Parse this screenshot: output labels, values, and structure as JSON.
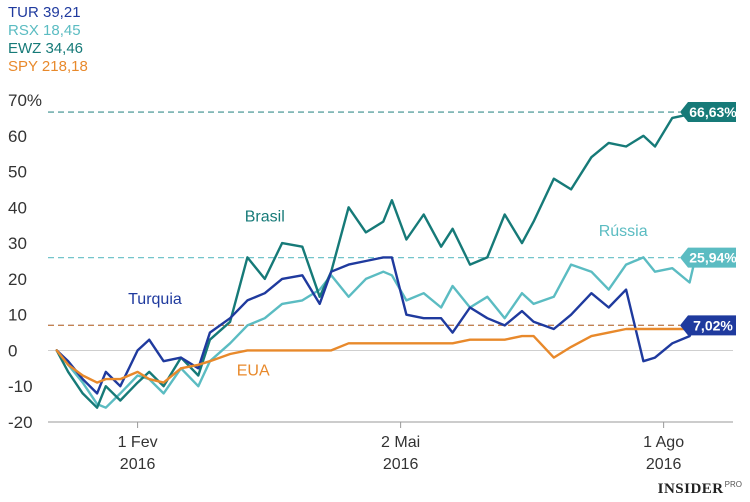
{
  "legend": [
    {
      "label": "TUR 39,21",
      "color": "#1f3a9e"
    },
    {
      "label": "RSX 18,45",
      "color": "#5bbcc2"
    },
    {
      "label": "EWZ 34,46",
      "color": "#167a78"
    },
    {
      "label": "SPY 218,18",
      "color": "#e8892b"
    }
  ],
  "brand": {
    "name": "INSIDER",
    "suffix": "PRO"
  },
  "chart_data": {
    "type": "line",
    "ylim": [
      -20,
      70
    ],
    "yticks": [
      70,
      60,
      50,
      40,
      30,
      20,
      10,
      0,
      -10,
      -20
    ],
    "ytick_labels": [
      "70%",
      "60",
      "50",
      "40",
      "30",
      "20",
      "10",
      "0",
      "-10",
      "-20"
    ],
    "xlim": [
      "2016-01-01",
      "2016-08-25"
    ],
    "xticks": [
      {
        "date": "2016-02-01",
        "line1": "1 Fev",
        "line2": "2016"
      },
      {
        "date": "2016-05-02",
        "line1": "2 Mai",
        "line2": "2016"
      },
      {
        "date": "2016-08-01",
        "line1": "1 Ago",
        "line2": "2016"
      }
    ],
    "grid": false,
    "series": [
      {
        "name": "Rússia",
        "ticker": "RSX",
        "color": "#5bbcc2",
        "end_label": "25,94%",
        "end_value": 25.94,
        "x": [
          "2016-01-04",
          "2016-01-08",
          "2016-01-13",
          "2016-01-18",
          "2016-01-21",
          "2016-01-26",
          "2016-02-01",
          "2016-02-05",
          "2016-02-10",
          "2016-02-16",
          "2016-02-22",
          "2016-02-26",
          "2016-03-04",
          "2016-03-10",
          "2016-03-16",
          "2016-03-22",
          "2016-03-29",
          "2016-04-04",
          "2016-04-08",
          "2016-04-14",
          "2016-04-20",
          "2016-04-26",
          "2016-04-29",
          "2016-05-04",
          "2016-05-10",
          "2016-05-16",
          "2016-05-20",
          "2016-05-26",
          "2016-06-01",
          "2016-06-07",
          "2016-06-13",
          "2016-06-17",
          "2016-06-24",
          "2016-06-30",
          "2016-07-07",
          "2016-07-13",
          "2016-07-19",
          "2016-07-25",
          "2016-07-29",
          "2016-08-04",
          "2016-08-10",
          "2016-08-12"
        ],
        "y": [
          0,
          -4,
          -9,
          -15,
          -16,
          -12,
          -7,
          -8,
          -12,
          -5,
          -10,
          -3,
          2,
          7,
          9,
          13,
          14,
          17,
          21,
          15,
          20,
          22,
          21,
          14,
          16,
          12,
          18,
          12,
          15,
          9,
          16,
          13,
          15,
          24,
          22,
          17,
          24,
          26,
          22,
          23,
          19,
          25.94
        ]
      },
      {
        "name": "Brasil",
        "ticker": "EWZ",
        "color": "#167a78",
        "end_label": "66,63%",
        "end_value": 66.63,
        "x": [
          "2016-01-04",
          "2016-01-08",
          "2016-01-13",
          "2016-01-18",
          "2016-01-21",
          "2016-01-26",
          "2016-02-01",
          "2016-02-05",
          "2016-02-10",
          "2016-02-16",
          "2016-02-22",
          "2016-02-26",
          "2016-03-04",
          "2016-03-10",
          "2016-03-16",
          "2016-03-22",
          "2016-03-29",
          "2016-04-04",
          "2016-04-08",
          "2016-04-14",
          "2016-04-20",
          "2016-04-26",
          "2016-04-29",
          "2016-05-04",
          "2016-05-10",
          "2016-05-16",
          "2016-05-20",
          "2016-05-26",
          "2016-06-01",
          "2016-06-07",
          "2016-06-13",
          "2016-06-17",
          "2016-06-24",
          "2016-06-30",
          "2016-07-07",
          "2016-07-13",
          "2016-07-19",
          "2016-07-25",
          "2016-07-29",
          "2016-08-04",
          "2016-08-10",
          "2016-08-12"
        ],
        "y": [
          0,
          -6,
          -12,
          -16,
          -10,
          -14,
          -9,
          -6,
          -10,
          -2,
          -7,
          3,
          8,
          26,
          20,
          30,
          29,
          15,
          22,
          40,
          33,
          36,
          42,
          31,
          38,
          29,
          34,
          24,
          26,
          38,
          30,
          36,
          48,
          45,
          54,
          58,
          57,
          60,
          57,
          65,
          66,
          66.63
        ]
      },
      {
        "name": "Turquia",
        "ticker": "TUR",
        "color": "#1f3a9e",
        "end_label": "7,02%",
        "end_value": 7.02,
        "x": [
          "2016-01-04",
          "2016-01-08",
          "2016-01-13",
          "2016-01-18",
          "2016-01-21",
          "2016-01-26",
          "2016-02-01",
          "2016-02-05",
          "2016-02-10",
          "2016-02-16",
          "2016-02-22",
          "2016-02-26",
          "2016-03-04",
          "2016-03-10",
          "2016-03-16",
          "2016-03-22",
          "2016-03-29",
          "2016-04-04",
          "2016-04-08",
          "2016-04-14",
          "2016-04-20",
          "2016-04-26",
          "2016-04-29",
          "2016-05-04",
          "2016-05-10",
          "2016-05-16",
          "2016-05-20",
          "2016-05-26",
          "2016-06-01",
          "2016-06-07",
          "2016-06-13",
          "2016-06-17",
          "2016-06-24",
          "2016-06-30",
          "2016-07-07",
          "2016-07-13",
          "2016-07-19",
          "2016-07-25",
          "2016-07-29",
          "2016-08-04",
          "2016-08-10",
          "2016-08-12"
        ],
        "y": [
          0,
          -3,
          -8,
          -12,
          -6,
          -10,
          0,
          3,
          -3,
          -2,
          -5,
          5,
          9,
          14,
          16,
          20,
          21,
          13,
          22,
          24,
          25,
          26,
          26,
          10,
          9,
          9,
          5,
          12,
          9,
          7,
          11,
          8,
          6,
          10,
          16,
          12,
          17,
          -3,
          -2,
          2,
          4,
          7.02
        ]
      },
      {
        "name": "EUA",
        "ticker": "SPY",
        "color": "#e8892b",
        "end_label": "",
        "end_value": 7.02,
        "x": [
          "2016-01-04",
          "2016-01-08",
          "2016-01-13",
          "2016-01-18",
          "2016-01-21",
          "2016-01-26",
          "2016-02-01",
          "2016-02-05",
          "2016-02-10",
          "2016-02-16",
          "2016-02-22",
          "2016-02-26",
          "2016-03-04",
          "2016-03-10",
          "2016-03-16",
          "2016-03-22",
          "2016-03-29",
          "2016-04-04",
          "2016-04-08",
          "2016-04-14",
          "2016-04-20",
          "2016-04-26",
          "2016-04-29",
          "2016-05-04",
          "2016-05-10",
          "2016-05-16",
          "2016-05-20",
          "2016-05-26",
          "2016-06-01",
          "2016-06-07",
          "2016-06-13",
          "2016-06-17",
          "2016-06-24",
          "2016-06-30",
          "2016-07-07",
          "2016-07-13",
          "2016-07-19",
          "2016-07-25",
          "2016-07-29",
          "2016-08-04",
          "2016-08-10",
          "2016-08-12"
        ],
        "y": [
          0,
          -4,
          -7,
          -9,
          -8,
          -8,
          -6,
          -8,
          -9,
          -5,
          -4,
          -3,
          -1,
          0,
          0,
          0,
          0,
          0,
          0,
          2,
          2,
          2,
          2,
          2,
          2,
          2,
          2,
          3,
          3,
          3,
          4,
          4,
          -2,
          1,
          4,
          5,
          6,
          6,
          6,
          6,
          6,
          7.02
        ]
      }
    ],
    "annotations": [
      {
        "text": "Brasil",
        "x": "2016-03-16",
        "y": 36,
        "color": "#167a78"
      },
      {
        "text": "Rússia",
        "x": "2016-07-18",
        "y": 32,
        "color": "#5bbcc2"
      },
      {
        "text": "Turquia",
        "x": "2016-02-07",
        "y": 13,
        "color": "#1f3a9e"
      },
      {
        "text": "EUA",
        "x": "2016-03-12",
        "y": -7,
        "color": "#e8892b"
      }
    ]
  }
}
